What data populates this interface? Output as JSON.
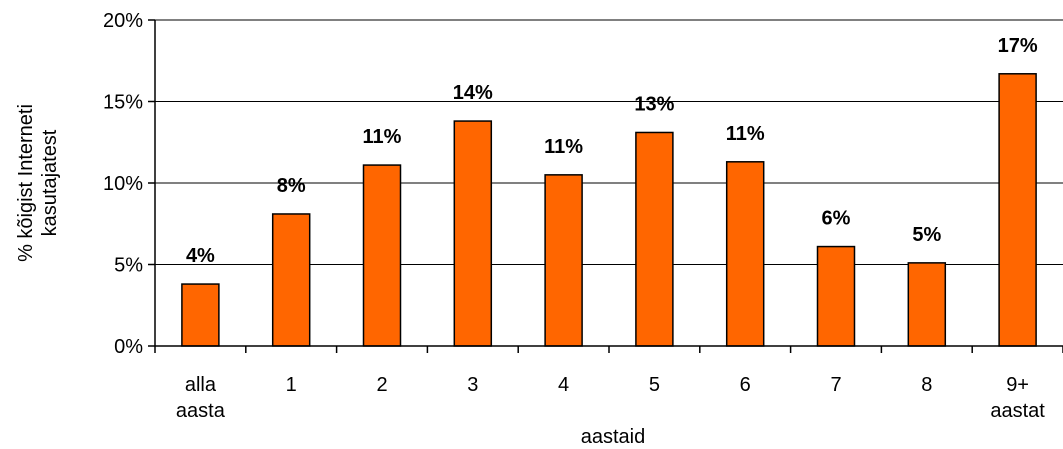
{
  "chart_data": {
    "type": "bar",
    "categories": [
      [
        "alla",
        "aasta"
      ],
      [
        "1"
      ],
      [
        "2"
      ],
      [
        "3"
      ],
      [
        "4"
      ],
      [
        "5"
      ],
      [
        "6"
      ],
      [
        "7"
      ],
      [
        "8"
      ],
      [
        "9+",
        "aastat"
      ]
    ],
    "values": [
      3.8,
      8.1,
      11.1,
      13.8,
      10.5,
      13.1,
      11.3,
      6.1,
      5.1,
      16.7
    ],
    "data_labels": [
      "4%",
      "8%",
      "11%",
      "14%",
      "11%",
      "13%",
      "11%",
      "6%",
      "5%",
      "17%"
    ],
    "xlabel": "aastaid",
    "ylabel": [
      "% kõigist Interneti",
      "kasutajatest"
    ],
    "ylim": [
      0,
      20
    ],
    "yticks": [
      0,
      5,
      10,
      15,
      20
    ],
    "ytick_labels": [
      "0%",
      "5%",
      "10%",
      "15%",
      "20%"
    ],
    "grid": true,
    "bar_color": "#ff6600"
  }
}
